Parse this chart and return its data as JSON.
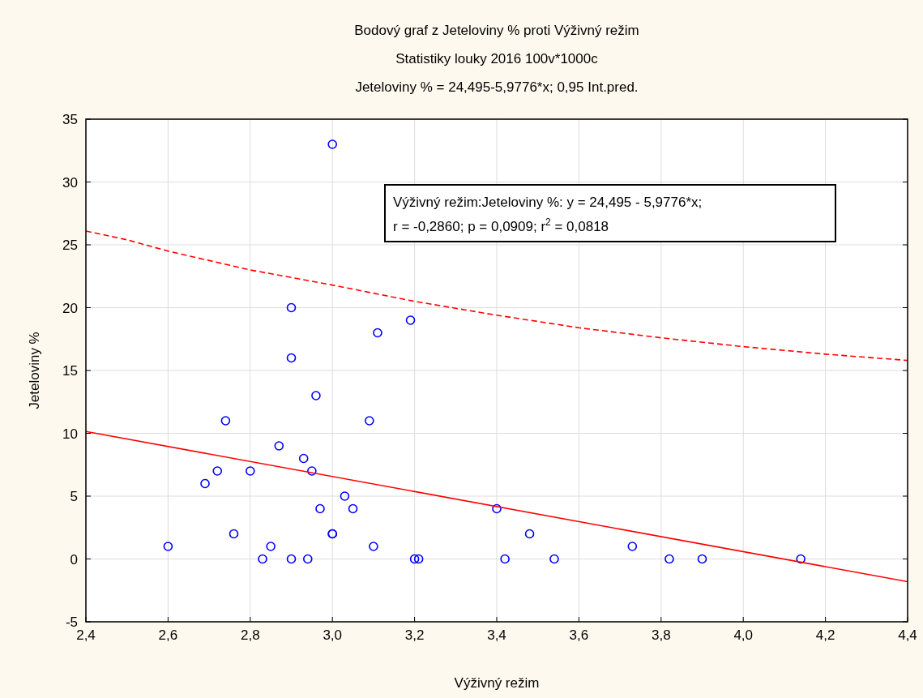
{
  "chart_data": {
    "type": "scatter",
    "title": "Bodový graf z Jeteloviny % proti Výživný režim",
    "subtitle": "Statistiky louky 2016 100v*1000c\nJeteloviny % = 24,495-5,9776*x; 0,95 Int.pred.",
    "xlabel": "Výživný režim",
    "ylabel": "Jeteloviny %",
    "xlim": [
      2.4,
      4.4
    ],
    "ylim": [
      -5,
      35
    ],
    "xticks": [
      {
        "value": 2.4,
        "label": "2,4"
      },
      {
        "value": 2.6,
        "label": "2,6"
      },
      {
        "value": 2.8,
        "label": "2,8"
      },
      {
        "value": 3.0,
        "label": "3,0"
      },
      {
        "value": 3.2,
        "label": "3,2"
      },
      {
        "value": 3.4,
        "label": "3,4"
      },
      {
        "value": 3.6,
        "label": "3,6"
      },
      {
        "value": 3.8,
        "label": "3,8"
      },
      {
        "value": 4.0,
        "label": "4,0"
      },
      {
        "value": 4.2,
        "label": "4,2"
      },
      {
        "value": 4.4,
        "label": "4,4"
      }
    ],
    "yticks": [
      -5,
      0,
      5,
      10,
      15,
      20,
      25,
      30,
      35
    ],
    "grid": true,
    "marker": "circle",
    "annotations": [
      "Výživný režim:Jeteloviny %:   y = 24,495 - 5,9776*x;",
      "r = -0,2860; p = 0,0909; r$^{2}$ = 0,0818"
    ],
    "series": [
      {
        "color": "#0000ff",
        "x": [
          2.6,
          2.69,
          2.72,
          2.74,
          2.76,
          2.8,
          2.83,
          2.85,
          2.87,
          2.9,
          2.9,
          2.9,
          2.93,
          2.94,
          2.95,
          2.96,
          2.97,
          3.0,
          3.0,
          3.0,
          3.03,
          3.05,
          3.09,
          3.1,
          3.11,
          3.19,
          3.2,
          3.21,
          3.4,
          3.42,
          3.48,
          3.54,
          3.73,
          3.82,
          3.9,
          4.14
        ],
        "values": [
          1,
          6,
          7,
          11,
          2,
          7,
          0,
          1,
          9,
          20,
          16,
          0,
          8,
          0,
          7,
          13,
          4,
          33,
          2,
          2,
          5,
          4,
          11,
          1,
          18,
          19,
          0,
          0,
          4,
          0,
          2,
          0,
          1,
          0,
          0,
          0
        ]
      },
      {
        "type": "line",
        "color": "#ff0000",
        "line_style": "solid",
        "marker": "none",
        "x": [
          2.4,
          4.4
        ],
        "values": [
          10.15,
          -1.81
        ]
      },
      {
        "type": "line",
        "color": "#ff0000",
        "line_style": "dashed",
        "marker": "none",
        "x": [
          2.4,
          2.5,
          2.6,
          2.8,
          3.0,
          3.2,
          3.4,
          3.6,
          3.8,
          4.0,
          4.2,
          4.4
        ],
        "values": [
          26.1,
          25.4,
          24.5,
          23.0,
          21.8,
          20.5,
          19.4,
          18.4,
          17.6,
          16.9,
          16.3,
          15.8
        ]
      }
    ]
  }
}
